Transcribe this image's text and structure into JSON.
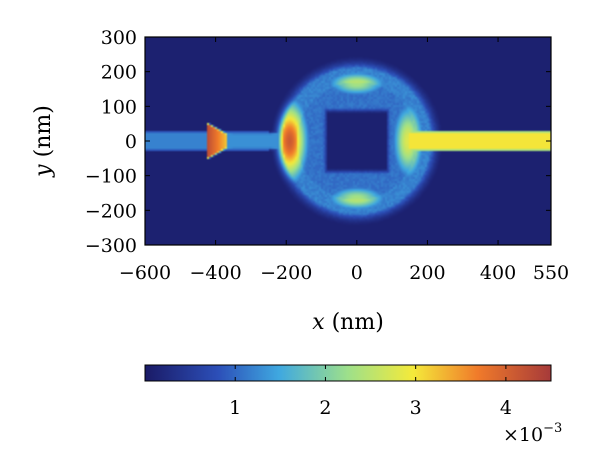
{
  "chart_data": {
    "type": "heatmap",
    "xlabel": {
      "var": "x",
      "unit": " (nm)"
    },
    "ylabel": {
      "var": "y",
      "unit": " (nm)"
    },
    "xlim": [
      -600,
      550
    ],
    "ylim": [
      -300,
      300
    ],
    "x_ticks": [
      {
        "value": -600,
        "label": "−600"
      },
      {
        "value": -400,
        "label": "−400"
      },
      {
        "value": -200,
        "label": "−200"
      },
      {
        "value": 0,
        "label": "0"
      },
      {
        "value": 200,
        "label": "200"
      },
      {
        "value": 400,
        "label": "400"
      },
      {
        "value": 550,
        "label": "550"
      }
    ],
    "y_ticks": [
      {
        "value": 300,
        "label": "300"
      },
      {
        "value": 200,
        "label": "200"
      },
      {
        "value": 100,
        "label": "100"
      },
      {
        "value": 0,
        "label": "0"
      },
      {
        "value": -100,
        "label": "−100"
      },
      {
        "value": -200,
        "label": "−200"
      },
      {
        "value": -300,
        "label": "−300"
      }
    ],
    "colorbar": {
      "orientation": "horizontal",
      "colormap": "jet",
      "range": [
        0,
        0.0045
      ],
      "ticks": [
        {
          "value": 0.001,
          "label": "1"
        },
        {
          "value": 0.002,
          "label": "2"
        },
        {
          "value": 0.003,
          "label": "3"
        },
        {
          "value": 0.004,
          "label": "4"
        }
      ],
      "scale_label": {
        "base": "×10",
        "exponent": "−3"
      }
    },
    "field_features": {
      "background_level": 0.0001,
      "waveguide_half_width_nm": 28,
      "input_waveguide": {
        "x_range": [
          -600,
          -250
        ],
        "level": 0.0012
      },
      "input_tip": {
        "x_range": [
          -420,
          -380
        ],
        "level": 0.0043
      },
      "output_waveguide": {
        "x_range": [
          150,
          550
        ],
        "level": 0.003
      },
      "ring": {
        "center": [
          0,
          0
        ],
        "radius_nm": 190,
        "width_nm": 46
      },
      "ring_left_hotspot": {
        "x": -190,
        "y": 0,
        "level": 0.0041
      },
      "ring_right_lobe": {
        "x": 145,
        "y": 0,
        "level": 0.0031
      },
      "ring_top_lobe": {
        "x": 0,
        "y": 165,
        "level": 0.0026
      },
      "ring_bottom_lobe": {
        "x": 0,
        "y": -165,
        "level": 0.0026
      },
      "inner_square_half_size_nm": 85
    }
  }
}
